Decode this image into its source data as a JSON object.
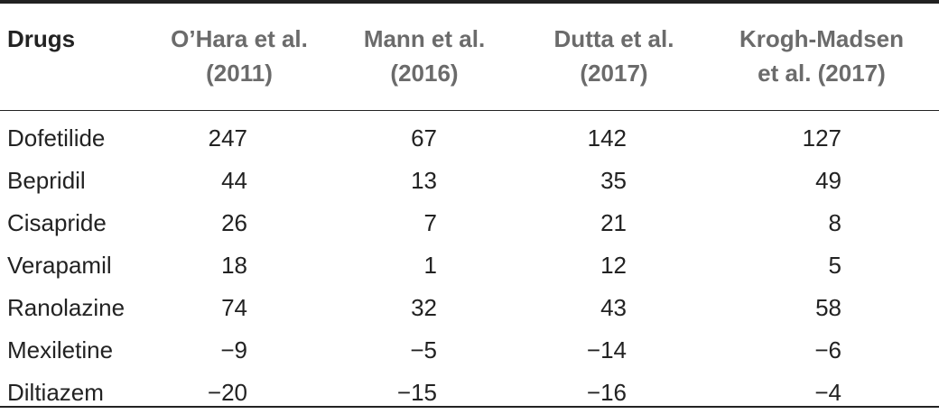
{
  "table": {
    "headers": [
      {
        "line1": "Drugs",
        "line2": ""
      },
      {
        "line1": "O’Hara et al.",
        "line2": "(2011)"
      },
      {
        "line1": "Mann et al.",
        "line2": "(2016)"
      },
      {
        "line1": "Dutta et al.",
        "line2": "(2017)"
      },
      {
        "line1": "Krogh-Madsen",
        "line2": "et al. (2017)"
      }
    ],
    "rows": [
      {
        "drug": "Dofetilide",
        "v1": "247",
        "v2": "67",
        "v3": "142",
        "v4": "127"
      },
      {
        "drug": "Bepridil",
        "v1": "44",
        "v2": "13",
        "v3": "35",
        "v4": "49"
      },
      {
        "drug": "Cisapride",
        "v1": "26",
        "v2": "7",
        "v3": "21",
        "v4": "8"
      },
      {
        "drug": "Verapamil",
        "v1": "18",
        "v2": "1",
        "v3": "12",
        "v4": "5"
      },
      {
        "drug": "Ranolazine",
        "v1": "74",
        "v2": "32",
        "v3": "43",
        "v4": "58"
      },
      {
        "drug": "Mexiletine",
        "v1": "−9",
        "v2": "−5",
        "v3": "−14",
        "v4": "−6"
      },
      {
        "drug": "Diltiazem",
        "v1": "−20",
        "v2": "−15",
        "v3": "−16",
        "v4": "−4"
      }
    ]
  }
}
